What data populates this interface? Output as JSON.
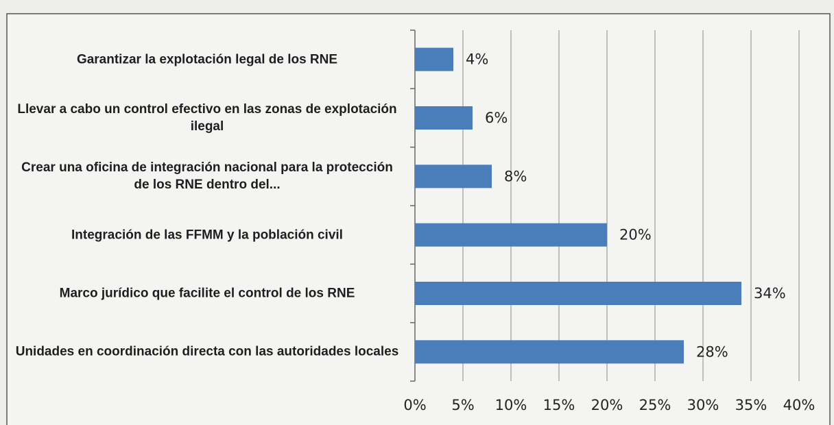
{
  "chart_data": {
    "type": "barh",
    "categories": [
      "Garantizar la explotación legal de los RNE",
      "Llevar a cabo un control efectivo en las zonas de explotación ilegal",
      "Crear una oficina de integración nacional para la protección de los RNE dentro del...",
      "Integración de las FFMM y la población civil",
      "Marco jurídico que facilite  el control de los RNE",
      "Unidades en coordinación directa con las autoridades locales"
    ],
    "values": [
      4,
      6,
      8,
      20,
      34,
      28
    ],
    "value_labels": [
      "4%",
      "6%",
      "8%",
      "20%",
      "34%",
      "28%"
    ],
    "color": "#4a7ebb",
    "xlim": [
      0,
      40
    ],
    "xticks": [
      {
        "value": 0,
        "label": "0%"
      },
      {
        "value": 5,
        "label": "5%"
      },
      {
        "value": 10,
        "label": "10%"
      },
      {
        "value": 15,
        "label": "15%"
      },
      {
        "value": 20,
        "label": "20%"
      },
      {
        "value": 25,
        "label": "25%"
      },
      {
        "value": 30,
        "label": "30%"
      },
      {
        "value": 35,
        "label": "35%"
      },
      {
        "value": 40,
        "label": "40%"
      }
    ],
    "grid": true
  }
}
